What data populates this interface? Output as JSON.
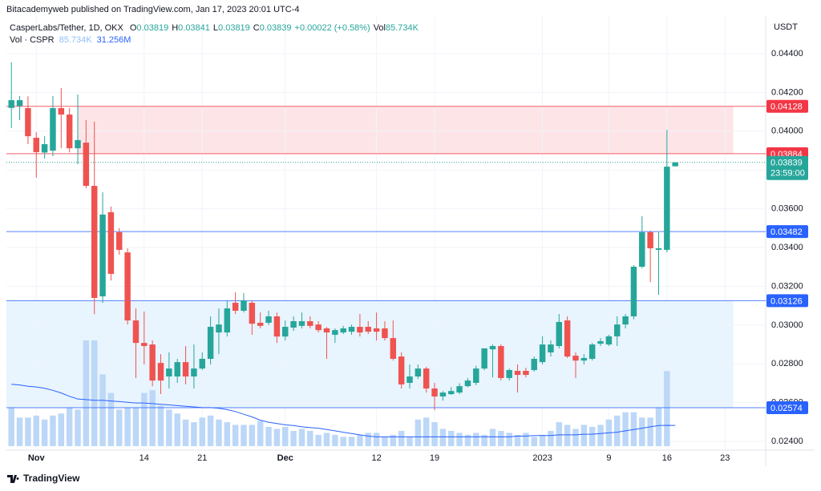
{
  "header": "Bitacademyweb published on TradingView.com, Jan 17, 2023 20:01 UTC-4",
  "footer": "TradingView",
  "chart_data": {
    "type": "candlestick",
    "title": "CasperLabs/Tether, 1D, OKX",
    "ohlc_prefixes": [
      "O",
      "H",
      "L",
      "C"
    ],
    "change_label": "+0.00022 (+0.58%)",
    "volume_prefix": "Vol",
    "volume_label": "85.734K",
    "volume_legend": "Vol · CSPR",
    "volume_legend_values": [
      "85.734K",
      "31.256M"
    ],
    "currency": "USDT",
    "countdown": "23:59:00",
    "x": [
      -3,
      -2,
      -1,
      0,
      1,
      2,
      3,
      4,
      5,
      6,
      7,
      8,
      9,
      10,
      11,
      12,
      13,
      14,
      15,
      16,
      17,
      18,
      19,
      20,
      21,
      22,
      23,
      24,
      25,
      26,
      27,
      28,
      29,
      30,
      31,
      32,
      33,
      34,
      35,
      36,
      37,
      38,
      39,
      40,
      41,
      42,
      43,
      44,
      45,
      46,
      47,
      48,
      49,
      50,
      51,
      52,
      53,
      54,
      55,
      56,
      57,
      58,
      59,
      60,
      61,
      62,
      63,
      64,
      65,
      66,
      67,
      68,
      69,
      70,
      71,
      72,
      73,
      74,
      75,
      76,
      77
    ],
    "open": [
      0.0412,
      0.0413,
      0.04119,
      0.03966,
      0.0389,
      0.039,
      0.04119,
      0.04086,
      0.03912,
      0.03941,
      0.03718,
      0.03148,
      0.03582,
      0.03479,
      0.03375,
      0.03024,
      0.02908,
      0.029,
      0.02805,
      0.02735,
      0.02735,
      0.02809,
      0.02735,
      0.02776,
      0.02826,
      0.02962,
      0.02962,
      0.03115,
      0.03074,
      0.03115,
      0.03012,
      0.03012,
      0.03045,
      0.02941,
      0.02987,
      0.02996,
      0.0302,
      0.03003,
      0.02983,
      0.0295,
      0.02962,
      0.02966,
      0.02991,
      0.02991,
      0.02983,
      0.02983,
      0.02933,
      0.02838,
      0.02702,
      0.02735,
      0.02776,
      0.02673,
      0.02632,
      0.02644,
      0.02652,
      0.02685,
      0.02702,
      0.02776,
      0.02875,
      0.02892,
      0.02727,
      0.02764,
      0.02764,
      0.02768,
      0.02809,
      0.02859,
      0.02892,
      0.03024,
      0.02842,
      0.02817,
      0.02826,
      0.02904,
      0.029,
      0.02942,
      0.03003,
      0.03045,
      0.03301,
      0.03479,
      0.03388,
      0.03388,
      0.03819
    ],
    "high": [
      0.04355,
      0.04181,
      0.0418,
      0.03995,
      0.03974,
      0.04181,
      0.04222,
      0.04119,
      0.0419,
      0.04057,
      0.04049,
      0.03685,
      0.03611,
      0.035,
      0.03396,
      0.03086,
      0.0307,
      0.02921,
      0.0285,
      0.02859,
      0.02826,
      0.02892,
      0.029,
      0.02859,
      0.03045,
      0.03086,
      0.03127,
      0.03169,
      0.03165,
      0.03127,
      0.03065,
      0.03074,
      0.03065,
      0.03024,
      0.03045,
      0.03065,
      0.03045,
      0.0302,
      0.0299,
      0.02983,
      0.02996,
      0.03003,
      0.03057,
      0.0302,
      0.03065,
      0.0302,
      0.03024,
      0.02859,
      0.02797,
      0.02797,
      0.02785,
      0.02702,
      0.0266,
      0.0268,
      0.027,
      0.02727,
      0.0279,
      0.0288,
      0.029,
      0.029,
      0.02776,
      0.02797,
      0.0278,
      0.02838,
      0.02942,
      0.02921,
      0.03057,
      0.03045,
      0.02859,
      0.0285,
      0.02908,
      0.02933,
      0.0295,
      0.03045,
      0.03057,
      0.03309,
      0.03561,
      0.03487,
      0.03479,
      0.04007,
      0.03841
    ],
    "low": [
      0.04016,
      0.04057,
      0.03933,
      0.0376,
      0.03859,
      0.03871,
      0.03912,
      0.03891,
      0.0383,
      0.03706,
      0.03057,
      0.03115,
      0.0323,
      0.03363,
      0.03003,
      0.02727,
      0.02797,
      0.02685,
      0.02644,
      0.02673,
      0.02702,
      0.02694,
      0.02673,
      0.02768,
      0.02797,
      0.0285,
      0.02941,
      0.03057,
      0.03065,
      0.0295,
      0.02983,
      0.03,
      0.02908,
      0.0292,
      0.0297,
      0.02983,
      0.02983,
      0.02962,
      0.02826,
      0.02908,
      0.02954,
      0.0295,
      0.02941,
      0.02954,
      0.0292,
      0.0292,
      0.02817,
      0.02673,
      0.02673,
      0.02723,
      0.02652,
      0.02561,
      0.0261,
      0.0264,
      0.02644,
      0.0268,
      0.0269,
      0.02768,
      0.0273,
      0.02714,
      0.02714,
      0.02652,
      0.0273,
      0.0276,
      0.02797,
      0.02838,
      0.0288,
      0.0283,
      0.02727,
      0.02797,
      0.02817,
      0.02892,
      0.02892,
      0.02892,
      0.02983,
      0.0303,
      0.03293,
      0.03222,
      0.03156,
      0.03375,
      0.03819
    ],
    "close": [
      0.0416,
      0.0416,
      0.03974,
      0.03892,
      0.03933,
      0.04119,
      0.04086,
      0.03912,
      0.03954,
      0.03718,
      0.0314,
      0.0357,
      0.03264,
      0.03388,
      0.03024,
      0.02908,
      0.02892,
      0.02714,
      0.02714,
      0.02776,
      0.02809,
      0.02735,
      0.02776,
      0.02826,
      0.02991,
      0.03003,
      0.03086,
      0.03074,
      0.03127,
      0.03007,
      0.02996,
      0.03045,
      0.02941,
      0.02991,
      0.0302,
      0.0302,
      0.02996,
      0.02974,
      0.02962,
      0.02974,
      0.02983,
      0.02991,
      0.02962,
      0.02966,
      0.02966,
      0.02933,
      0.02826,
      0.02694,
      0.02735,
      0.02776,
      0.02673,
      0.02632,
      0.02652,
      0.0266,
      0.02685,
      0.02714,
      0.02776,
      0.0288,
      0.02892,
      0.02727,
      0.02768,
      0.02743,
      0.02743,
      0.02826,
      0.029,
      0.029,
      0.03016,
      0.02838,
      0.02817,
      0.0283,
      0.029,
      0.02917,
      0.02942,
      0.03003,
      0.03045,
      0.03301,
      0.03479,
      0.03396,
      0.03396,
      0.03817,
      0.03839
    ],
    "up_color": "#26a69a",
    "down_color": "#ef5350",
    "volume": [
      58,
      43,
      43,
      46,
      40,
      46,
      49,
      58,
      55,
      159,
      159,
      108,
      80,
      55,
      58,
      58,
      80,
      84,
      61,
      55,
      49,
      40,
      36,
      43,
      46,
      40,
      36,
      32,
      32,
      32,
      38,
      29,
      26,
      29,
      23,
      26,
      23,
      17,
      20,
      17,
      14,
      14,
      17,
      20,
      20,
      14,
      17,
      23,
      14,
      40,
      43,
      36,
      26,
      23,
      20,
      17,
      20,
      17,
      26,
      23,
      20,
      17,
      20,
      14,
      17,
      23,
      36,
      32,
      26,
      32,
      29,
      32,
      40,
      46,
      51,
      51,
      43,
      43,
      58,
      113,
      0.085734
    ],
    "volume_color": "#bcd7f7",
    "volume_ma": [
      93,
      92,
      90,
      89,
      87,
      84,
      80,
      75,
      71,
      70,
      69,
      69,
      68,
      67,
      66,
      65,
      65,
      64,
      63,
      62,
      61,
      60,
      59,
      58,
      58,
      57,
      55,
      52,
      48,
      44,
      39,
      36,
      34,
      32,
      31,
      29,
      28,
      27,
      25,
      23,
      21,
      19,
      17,
      15,
      14,
      14,
      14,
      14,
      14,
      14,
      14,
      14,
      14,
      14,
      14,
      14,
      14,
      14,
      14,
      14,
      14,
      15,
      15,
      16,
      16,
      16,
      17,
      17,
      17,
      18,
      18,
      19,
      20,
      21,
      23,
      25,
      27,
      29,
      31,
      31.3,
      31.256
    ],
    "volume_ma_color": "#2962ff",
    "xlim": [
      -3.6,
      87.9
    ],
    "xticks": [
      {
        "value": 0,
        "label": "Nov"
      },
      {
        "value": 13,
        "label": "14"
      },
      {
        "value": 20,
        "label": "21"
      },
      {
        "value": 30,
        "label": "Dec"
      },
      {
        "value": 41,
        "label": "12"
      },
      {
        "value": 48,
        "label": "19"
      },
      {
        "value": 61,
        "label": "2023"
      },
      {
        "value": 69,
        "label": "9"
      },
      {
        "value": 76,
        "label": "16"
      },
      {
        "value": 83,
        "label": "23"
      }
    ],
    "ylim": [
      0.02355,
      0.04594
    ],
    "yticks": [
      {
        "value": 0.044,
        "label": "0.04400"
      },
      {
        "value": 0.042,
        "label": "0.04200"
      },
      {
        "value": 0.04,
        "label": "0.04000"
      },
      {
        "value": 0.038,
        "label": "0.03800"
      },
      {
        "value": 0.036,
        "label": "0.03600"
      },
      {
        "value": 0.034,
        "label": "0.03400"
      },
      {
        "value": 0.032,
        "label": "0.03200"
      },
      {
        "value": 0.03,
        "label": "0.03000"
      },
      {
        "value": 0.028,
        "label": "0.02800"
      },
      {
        "value": 0.026,
        "label": "0.02600"
      },
      {
        "value": 0.024,
        "label": "0.02400"
      }
    ],
    "grid": true,
    "levels": [
      {
        "value": 0.04128,
        "color": "#f23645"
      },
      {
        "value": 0.03884,
        "color": "#f23645"
      },
      {
        "value": 0.03482,
        "color": "#2962ff"
      },
      {
        "value": 0.03126,
        "color": "#2962ff"
      },
      {
        "value": 0.02574,
        "color": "#2962ff"
      }
    ],
    "zones": [
      {
        "from": 0.03884,
        "to": 0.04128,
        "x": [
          5,
          84
        ],
        "color": "rgba(242,54,69,0.13)"
      },
      {
        "from": 0.02574,
        "to": 0.03126,
        "x": [
          -3.6,
          84
        ],
        "color": "rgba(33,150,243,0.10)"
      }
    ]
  }
}
